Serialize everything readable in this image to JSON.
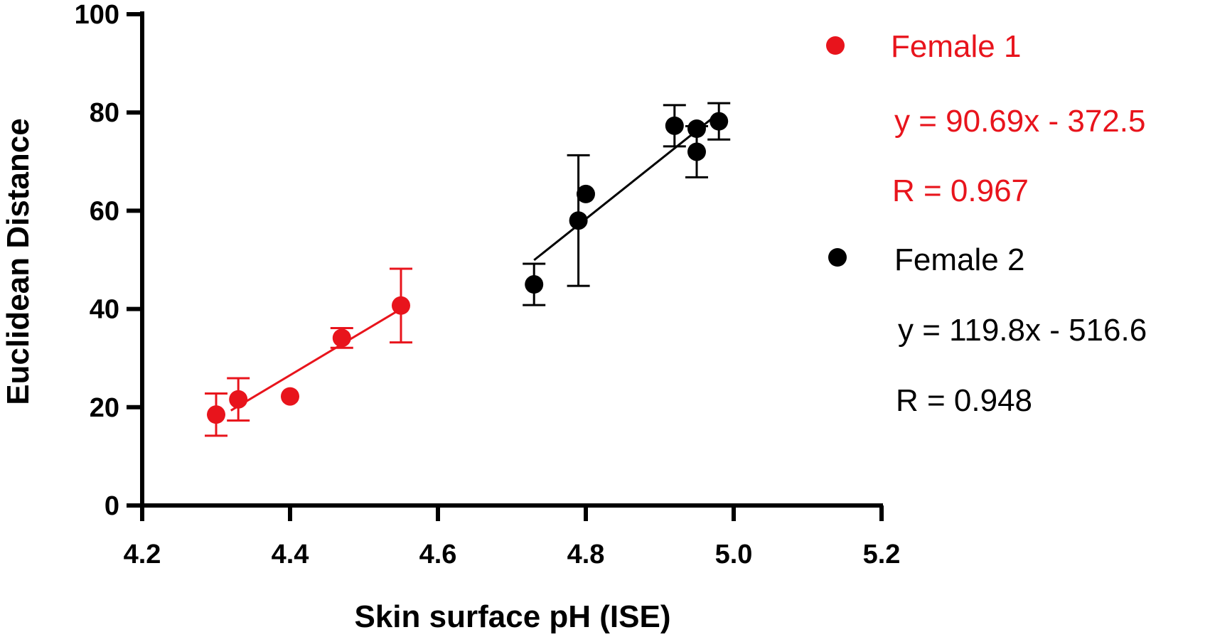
{
  "chart_data": {
    "type": "scatter",
    "xlabel": "Skin surface pH (ISE)",
    "ylabel": "Euclidean Distance",
    "xlim": [
      4.2,
      5.2
    ],
    "ylim": [
      0,
      100
    ],
    "x_ticks": [
      "4.2",
      "4.4",
      "4.6",
      "4.8",
      "5.0",
      "5.2"
    ],
    "y_ticks": [
      "0",
      "20",
      "40",
      "60",
      "80",
      "100"
    ],
    "grid": false,
    "legend_position": "right",
    "series": [
      {
        "name": "Female 1",
        "color": "#e8141c",
        "points": [
          {
            "x": 4.3,
            "y": 18.5,
            "err": 4.3
          },
          {
            "x": 4.33,
            "y": 21.6,
            "err": 4.3
          },
          {
            "x": 4.4,
            "y": 22.2,
            "err": 0
          },
          {
            "x": 4.47,
            "y": 34.1,
            "err": 2.0
          },
          {
            "x": 4.55,
            "y": 40.7,
            "err": 7.5
          }
        ],
        "fit": {
          "x_start": 4.32,
          "x_end": 4.55
        },
        "equation": "y = 90.69x - 372.5",
        "r_text": "R = 0.967"
      },
      {
        "name": "Female 2",
        "color": "#000000",
        "points": [
          {
            "x": 4.73,
            "y": 45.0,
            "err": 4.2
          },
          {
            "x": 4.79,
            "y": 58.0,
            "err": 13.3
          },
          {
            "x": 4.8,
            "y": 63.4,
            "err": 0
          },
          {
            "x": 4.92,
            "y": 77.3,
            "err": 4.2
          },
          {
            "x": 4.95,
            "y": 76.7,
            "err": 0
          },
          {
            "x": 4.95,
            "y": 72.0,
            "err": 5.2
          },
          {
            "x": 4.98,
            "y": 78.2,
            "err": 3.7
          }
        ],
        "fit": {
          "x_start": 4.73,
          "x_end": 4.98
        },
        "equation": "y = 119.8x - 516.6",
        "r_text": "R = 0.948"
      }
    ]
  }
}
